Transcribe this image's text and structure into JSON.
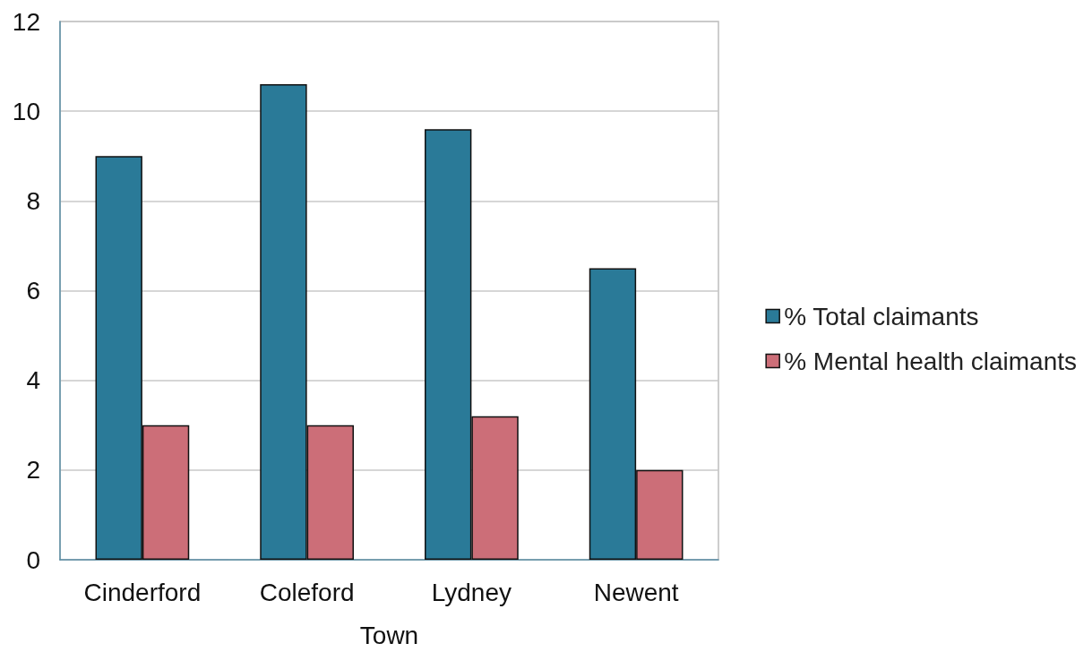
{
  "chart_data": {
    "type": "bar",
    "xlabel": "Town",
    "categories": [
      "Cinderford",
      "Coleford",
      "Lydney",
      "Newent"
    ],
    "series": [
      {
        "name": "% Total claimants",
        "color": "#2a7a98",
        "values": [
          9.0,
          10.6,
          9.6,
          6.5
        ]
      },
      {
        "name": "% Mental health claimants",
        "color": "#cc6e78",
        "values": [
          3.0,
          3.0,
          3.2,
          2.0
        ]
      }
    ],
    "ylim": [
      0,
      12
    ],
    "yticks": [
      0,
      2,
      4,
      6,
      8,
      10,
      12
    ],
    "grid": "y",
    "legend": "right"
  }
}
